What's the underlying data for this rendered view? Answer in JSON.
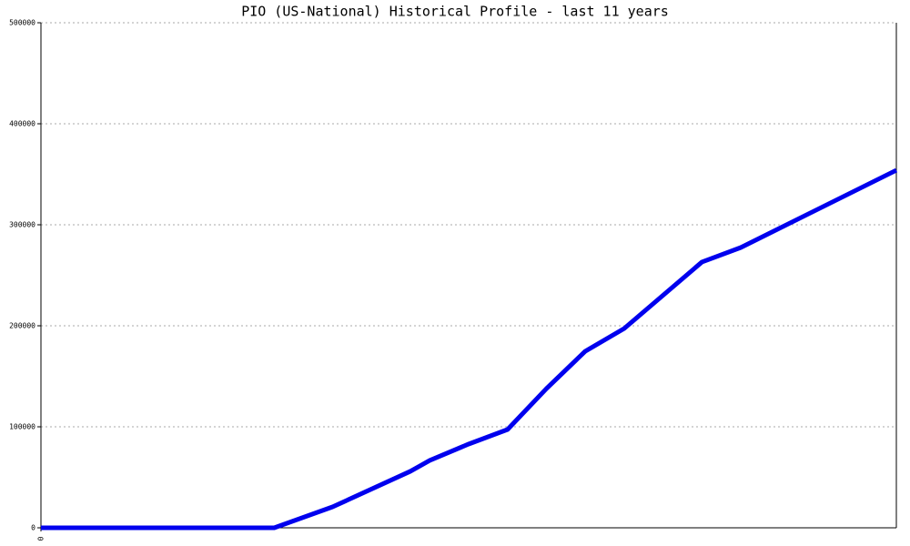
{
  "chart_data": {
    "type": "line",
    "title": "PIO (US-National) Historical Profile - last 11 years",
    "x": [
      0,
      36,
      45,
      57,
      60,
      66,
      72,
      78,
      84,
      90,
      102,
      108,
      132
    ],
    "series": [
      {
        "name": "PIO",
        "color": "#0000ee",
        "values": [
          0,
          0,
          20700,
          55900,
          66700,
          82900,
          97300,
          137800,
          174800,
          197300,
          263100,
          277500,
          354000
        ]
      }
    ],
    "xlim": [
      0,
      132
    ],
    "xticks": [
      0
    ],
    "ylim": [
      0,
      500000
    ],
    "yticks": [
      0,
      100000,
      200000,
      300000,
      400000,
      500000
    ],
    "grid": true
  }
}
